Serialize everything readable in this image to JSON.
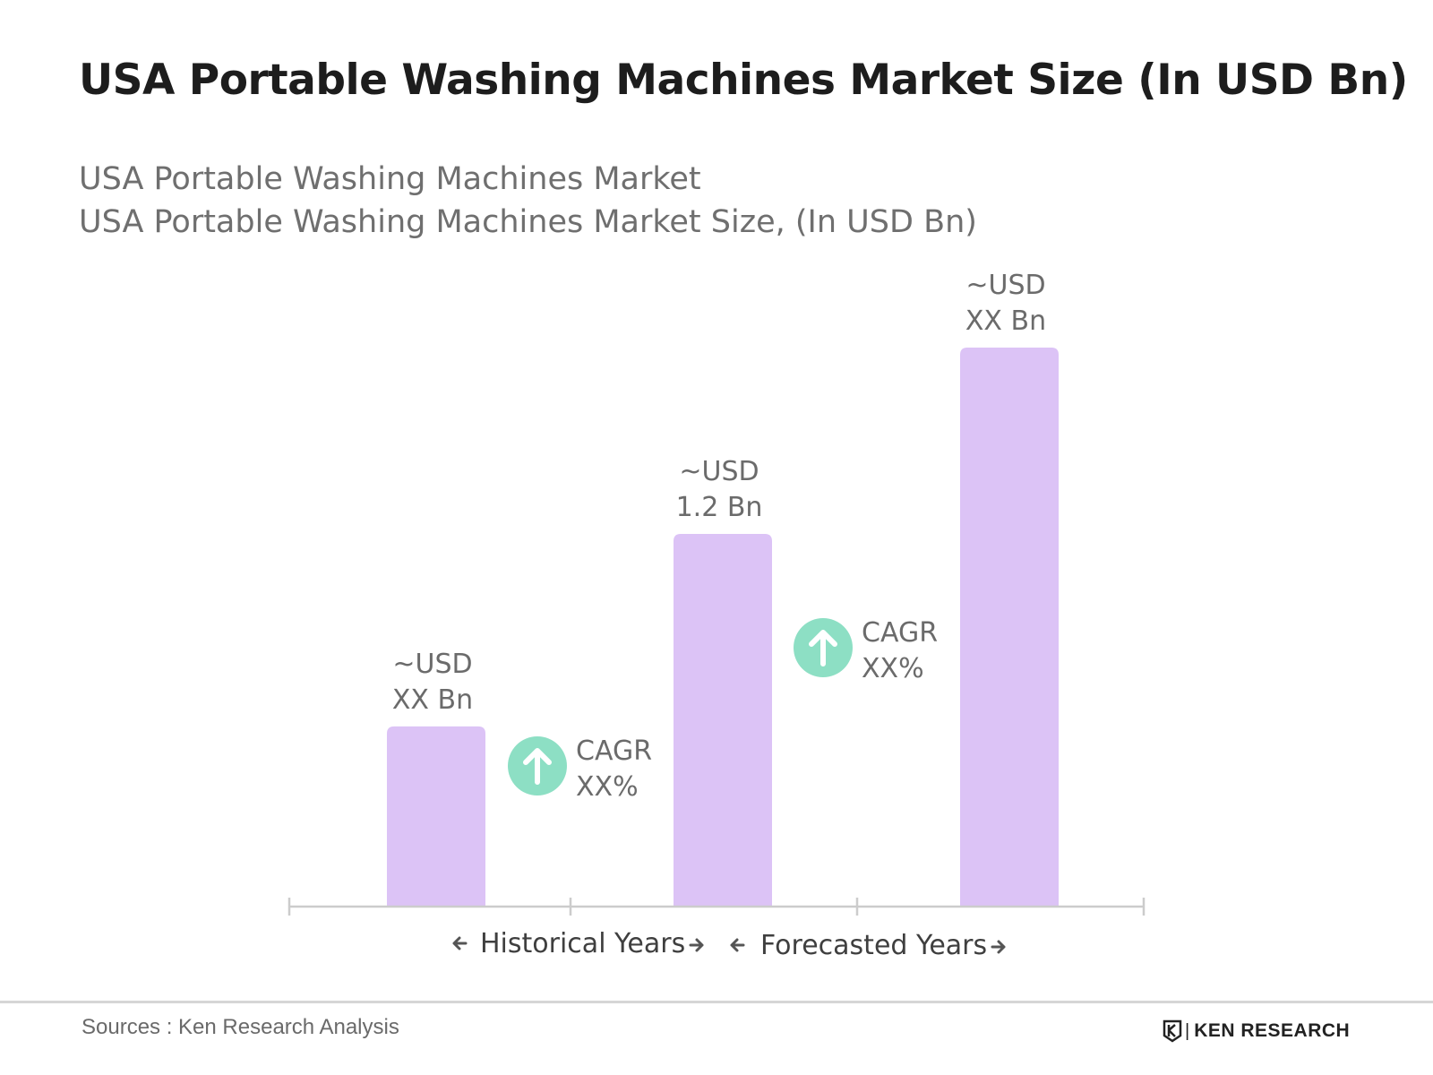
{
  "title": "USA Portable Washing Machines Market Size (In USD Bn)",
  "subtitle_lines": [
    "USA Portable Washing Machines Market",
    "USA Portable Washing Machines Market Size, (In USD Bn)"
  ],
  "source": "Sources : Ken Research Analysis",
  "logo_text": "KEN RESEARCH",
  "colors": {
    "bar": "#dcc3f6",
    "cagr_circle": "#8ddfc4",
    "axis": "#cccccc",
    "label": "#6b6b6b"
  },
  "chart_data": {
    "type": "bar",
    "title": "USA Portable Washing Machines Market Size (In USD Bn)",
    "categories": [
      "",
      "",
      ""
    ],
    "values": [
      0.58,
      1.2,
      1.8
    ],
    "value_note": "first and third values are estimated from bar heights; shown labels are placeholders",
    "data_labels": [
      [
        "~USD",
        "XX Bn"
      ],
      [
        "~USD",
        "1.2 Bn"
      ],
      [
        "~USD",
        "XX Bn"
      ]
    ],
    "cagr_annotations": [
      {
        "icon": "arrow-up-icon",
        "lines": [
          "CAGR",
          "XX%"
        ]
      },
      {
        "icon": "arrow-up-icon",
        "lines": [
          "CAGR",
          "XX%"
        ]
      }
    ],
    "period_labels": [
      "Historical Years",
      "Forecasted Years"
    ],
    "xlabel": "",
    "ylabel": "",
    "ylim": [
      0,
      1.8
    ],
    "grid": false,
    "legend": "none"
  }
}
